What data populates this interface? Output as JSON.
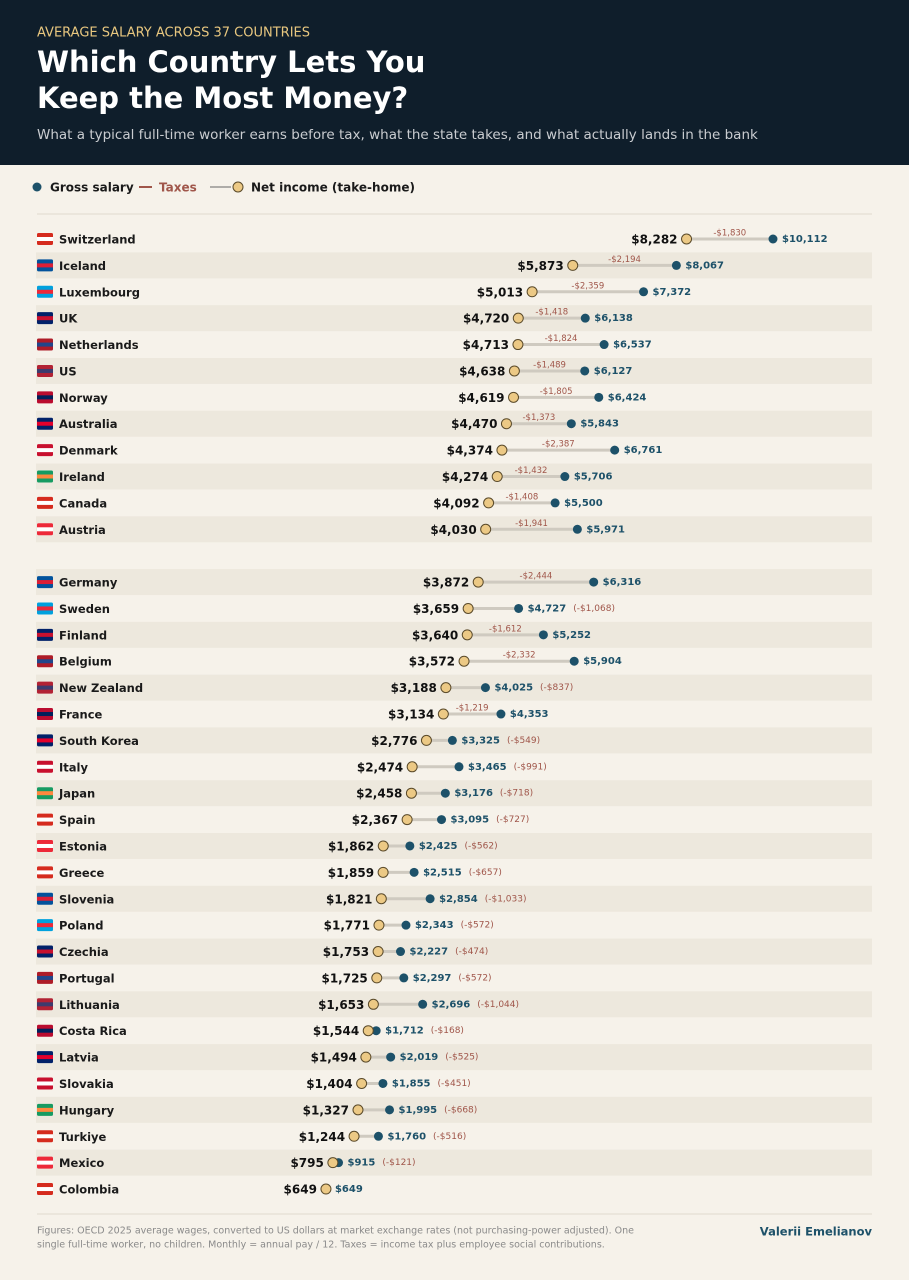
{
  "chart_data": {
    "type": "dumbbell",
    "kicker": "AVERAGE SALARY ACROSS 37 COUNTRIES",
    "title": [
      "Which Country Lets You",
      "Keep the Most Money?"
    ],
    "subtitle": "What a typical full-time worker earns before tax, what the state takes, and what actually lands in the bank",
    "categories": [
      "Switzerland",
      "Iceland",
      "Luxembourg",
      "UK",
      "Netherlands",
      "US",
      "Norway",
      "Australia",
      "Denmark",
      "Ireland",
      "Canada",
      "Austria",
      null,
      "Germany",
      "Sweden",
      "Finland",
      "Belgium",
      "New Zealand",
      "France",
      "South Korea",
      "Italy",
      "Japan",
      "Spain",
      "Estonia",
      "Greece",
      "Slovenia",
      "Poland",
      "Czechia",
      "Portugal",
      "Lithuania",
      "Costa Rica",
      "Latvia",
      "Slovakia",
      "Hungary",
      "Turkiye",
      "Mexico",
      "Colombia"
    ],
    "series": [
      {
        "name": "Gross salary",
        "color": "#1d5169",
        "values": [
          10112,
          8067,
          7372,
          6138,
          6537,
          6127,
          6424,
          5843,
          6761,
          5706,
          5500,
          5971,
          null,
          6316,
          4727,
          5252,
          5904,
          4025,
          4353,
          3325,
          3465,
          3176,
          3095,
          2425,
          2515,
          2854,
          2343,
          2227,
          2297,
          2696,
          1712,
          2019,
          1855,
          1995,
          1760,
          915,
          649
        ],
        "value_labels": [
          "$10,112",
          "$8,067",
          "$7,372",
          "$6,138",
          "$6,537",
          "$6,127",
          "$6,424",
          "$5,843",
          "$6,761",
          "$5,706",
          "$5,500",
          "$5,971",
          null,
          "$6,316",
          "$4,727",
          "$5,252",
          "$5,904",
          "$4,025",
          "$4,353",
          "$3,325",
          "$3,465",
          "$3,176",
          "$3,095",
          "$2,425",
          "$2,515",
          "$2,854",
          "$2,343",
          "$2,227",
          "$2,297",
          "$2,696",
          "$1,712",
          "$2,019",
          "$1,855",
          "$1,995",
          "$1,760",
          "$915",
          "$649"
        ]
      },
      {
        "name": "Taxes",
        "color": "#a0564a",
        "values": [
          -1830,
          -2194,
          -2359,
          -1418,
          -1824,
          -1489,
          -1805,
          -1373,
          -2387,
          -1432,
          -1408,
          -1941,
          null,
          -2444,
          -1068,
          -1612,
          -2332,
          -837,
          -1219,
          -549,
          -991,
          -718,
          -727,
          -562,
          -657,
          -1033,
          -572,
          -474,
          -572,
          -1044,
          -168,
          -525,
          -451,
          -668,
          -516,
          -121,
          0
        ],
        "value_labels": [
          "-$1,830",
          "-$2,194",
          "-$2,359",
          "-$1,418",
          "-$1,824",
          "-$1,489",
          "-$1,805",
          "-$1,373",
          "-$2,387",
          "-$1,432",
          "-$1,408",
          "-$1,941",
          null,
          "-$2,444",
          "(-$1,068)",
          "-$1,612",
          "-$2,332",
          "(-$837)",
          "-$1,219",
          "(-$549)",
          "(-$991)",
          "(-$718)",
          "(-$727)",
          "(-$562)",
          "(-$657)",
          "(-$1,033)",
          "(-$572)",
          "(-$474)",
          "(-$572)",
          "(-$1,044)",
          "(-$168)",
          "(-$525)",
          "(-$451)",
          "(-$668)",
          "(-$516)",
          "(-$121)",
          null
        ]
      },
      {
        "name": "Net income (take-home)",
        "color": "#ecc985",
        "values": [
          8282,
          5873,
          5013,
          4720,
          4713,
          4638,
          4619,
          4470,
          4374,
          4274,
          4092,
          4030,
          null,
          3872,
          3659,
          3640,
          3572,
          3188,
          3134,
          2776,
          2474,
          2458,
          2367,
          1862,
          1859,
          1821,
          1771,
          1753,
          1725,
          1653,
          1544,
          1494,
          1404,
          1327,
          1244,
          795,
          649
        ],
        "value_labels": [
          "$8,282",
          "$5,873",
          "$5,013",
          "$4,720",
          "$4,713",
          "$4,638",
          "$4,619",
          "$4,470",
          "$4,374",
          "$4,274",
          "$4,092",
          "$4,030",
          null,
          "$3,872",
          "$3,659",
          "$3,640",
          "$3,572",
          "$3,188",
          "$3,134",
          "$2,776",
          "$2,474",
          "$2,458",
          "$2,367",
          "$1,862",
          "$1,859",
          "$1,821",
          "$1,771",
          "$1,753",
          "$1,725",
          "$1,653",
          "$1,544",
          "$1,494",
          "$1,404",
          "$1,327",
          "$1,244",
          "$795",
          "$649"
        ]
      }
    ],
    "footnote": [
      "Figures: OECD 2025 average wages, converted to US dollars at market exchange rates (not purchasing-power adjusted). One",
      "single full-time worker, no children. Monthly = annual pay / 12. Taxes = income tax plus employee social contributions."
    ],
    "author": "Valerii Emelianov"
  }
}
